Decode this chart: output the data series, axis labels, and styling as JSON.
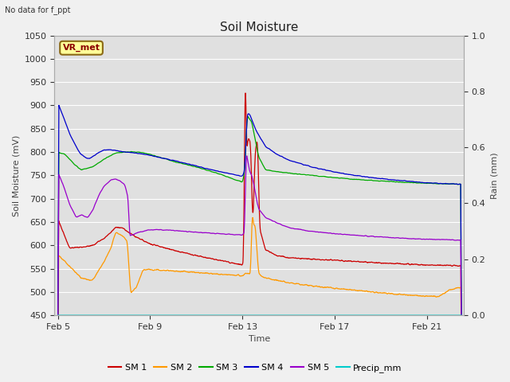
{
  "title": "Soil Moisture",
  "subtitle": "No data for f_ppt",
  "ylabel_left": "Soil Moisture (mV)",
  "ylabel_right": "Rain (mm)",
  "xlabel": "Time",
  "ylim_left": [
    450,
    1050
  ],
  "ylim_right": [
    0.0,
    1.0
  ],
  "yticks_left": [
    450,
    500,
    550,
    600,
    650,
    700,
    750,
    800,
    850,
    900,
    950,
    1000,
    1050
  ],
  "yticks_right": [
    0.0,
    0.2,
    0.4,
    0.6,
    0.8,
    1.0
  ],
  "xtick_positions": [
    5,
    9,
    13,
    17,
    21
  ],
  "xtick_labels": [
    "Feb 5",
    "Feb 9",
    "Feb 13",
    "Feb 17",
    "Feb 21"
  ],
  "legend_entries": [
    "SM 1",
    "SM 2",
    "SM 3",
    "SM 4",
    "SM 5",
    "Precip_mm"
  ],
  "colors": {
    "sm1": "#cc0000",
    "sm2": "#ff9900",
    "sm3": "#00aa00",
    "sm4": "#0000cc",
    "sm5": "#9900cc",
    "precip": "#00cccc"
  },
  "vr_met_label": "VR_met",
  "fig_facecolor": "#f0f0f0",
  "plot_facecolor": "#e0e0e0",
  "grid_color": "#ffffff",
  "title_fontsize": 11,
  "label_fontsize": 8,
  "tick_fontsize": 8,
  "legend_fontsize": 8,
  "t_start": 5.0,
  "t_end": 22.5,
  "xlim_start": 4.85,
  "xlim_end": 22.6
}
